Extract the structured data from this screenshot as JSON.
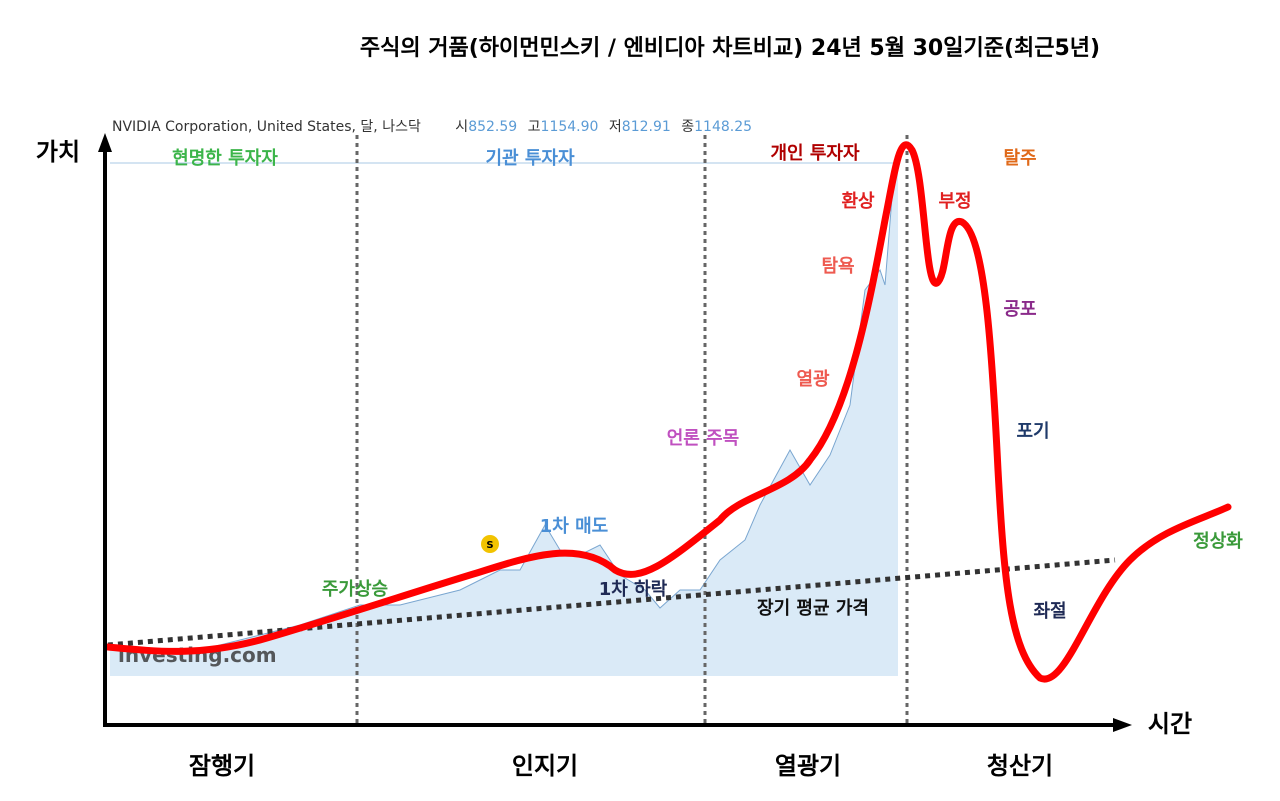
{
  "title": "주식의 거품(하이먼민스키 / 엔비디아 차트비교) 24년 5월 30일기준(최근5년)",
  "chart_header": {
    "instrument": "NVIDIA Corporation, United States, 달, 나스닥",
    "open_label": "시",
    "open": "852.59",
    "high_label": "고",
    "high": "1154.90",
    "low_label": "저",
    "low": "812.91",
    "close_label": "종",
    "close": "1148.25",
    "watermark": "investing.com",
    "marker": "S"
  },
  "axes": {
    "y_label": "가치",
    "x_label": "시간"
  },
  "investors": [
    {
      "text": "현명한 투자자",
      "color": "#3cb54a"
    },
    {
      "text": "기관 투자자",
      "color": "#4a8fd6"
    },
    {
      "text": "개인 투자자",
      "color": "#b00000"
    },
    {
      "text": "탈주",
      "color": "#e06a1a"
    }
  ],
  "stage_labels": [
    {
      "text": "주가상승",
      "color": "#3a9a3a"
    },
    {
      "text": "1차 매도",
      "color": "#4a8fd6"
    },
    {
      "text": "1차 하락",
      "color": "#1f2a55"
    },
    {
      "text": "언론 주목",
      "color": "#c050c0"
    },
    {
      "text": "열광",
      "color": "#ee5a50"
    },
    {
      "text": "탐욕",
      "color": "#ee5a50"
    },
    {
      "text": "환상",
      "color": "#e02020"
    },
    {
      "text": "부정",
      "color": "#e02020"
    },
    {
      "text": "공포",
      "color": "#8a2a8a"
    },
    {
      "text": "포기",
      "color": "#1f3a6a"
    },
    {
      "text": "좌절",
      "color": "#1f2a55"
    },
    {
      "text": "정상화",
      "color": "#3a9a3a"
    },
    {
      "text": "장기 평균 가격",
      "color": "#111111"
    }
  ],
  "phases": [
    "잠행기",
    "인지기",
    "열광기",
    "청산기"
  ],
  "colors": {
    "bubble_curve": "#ff0000",
    "price_area": "#daeaf7",
    "price_line": "#7aa6d0"
  }
}
